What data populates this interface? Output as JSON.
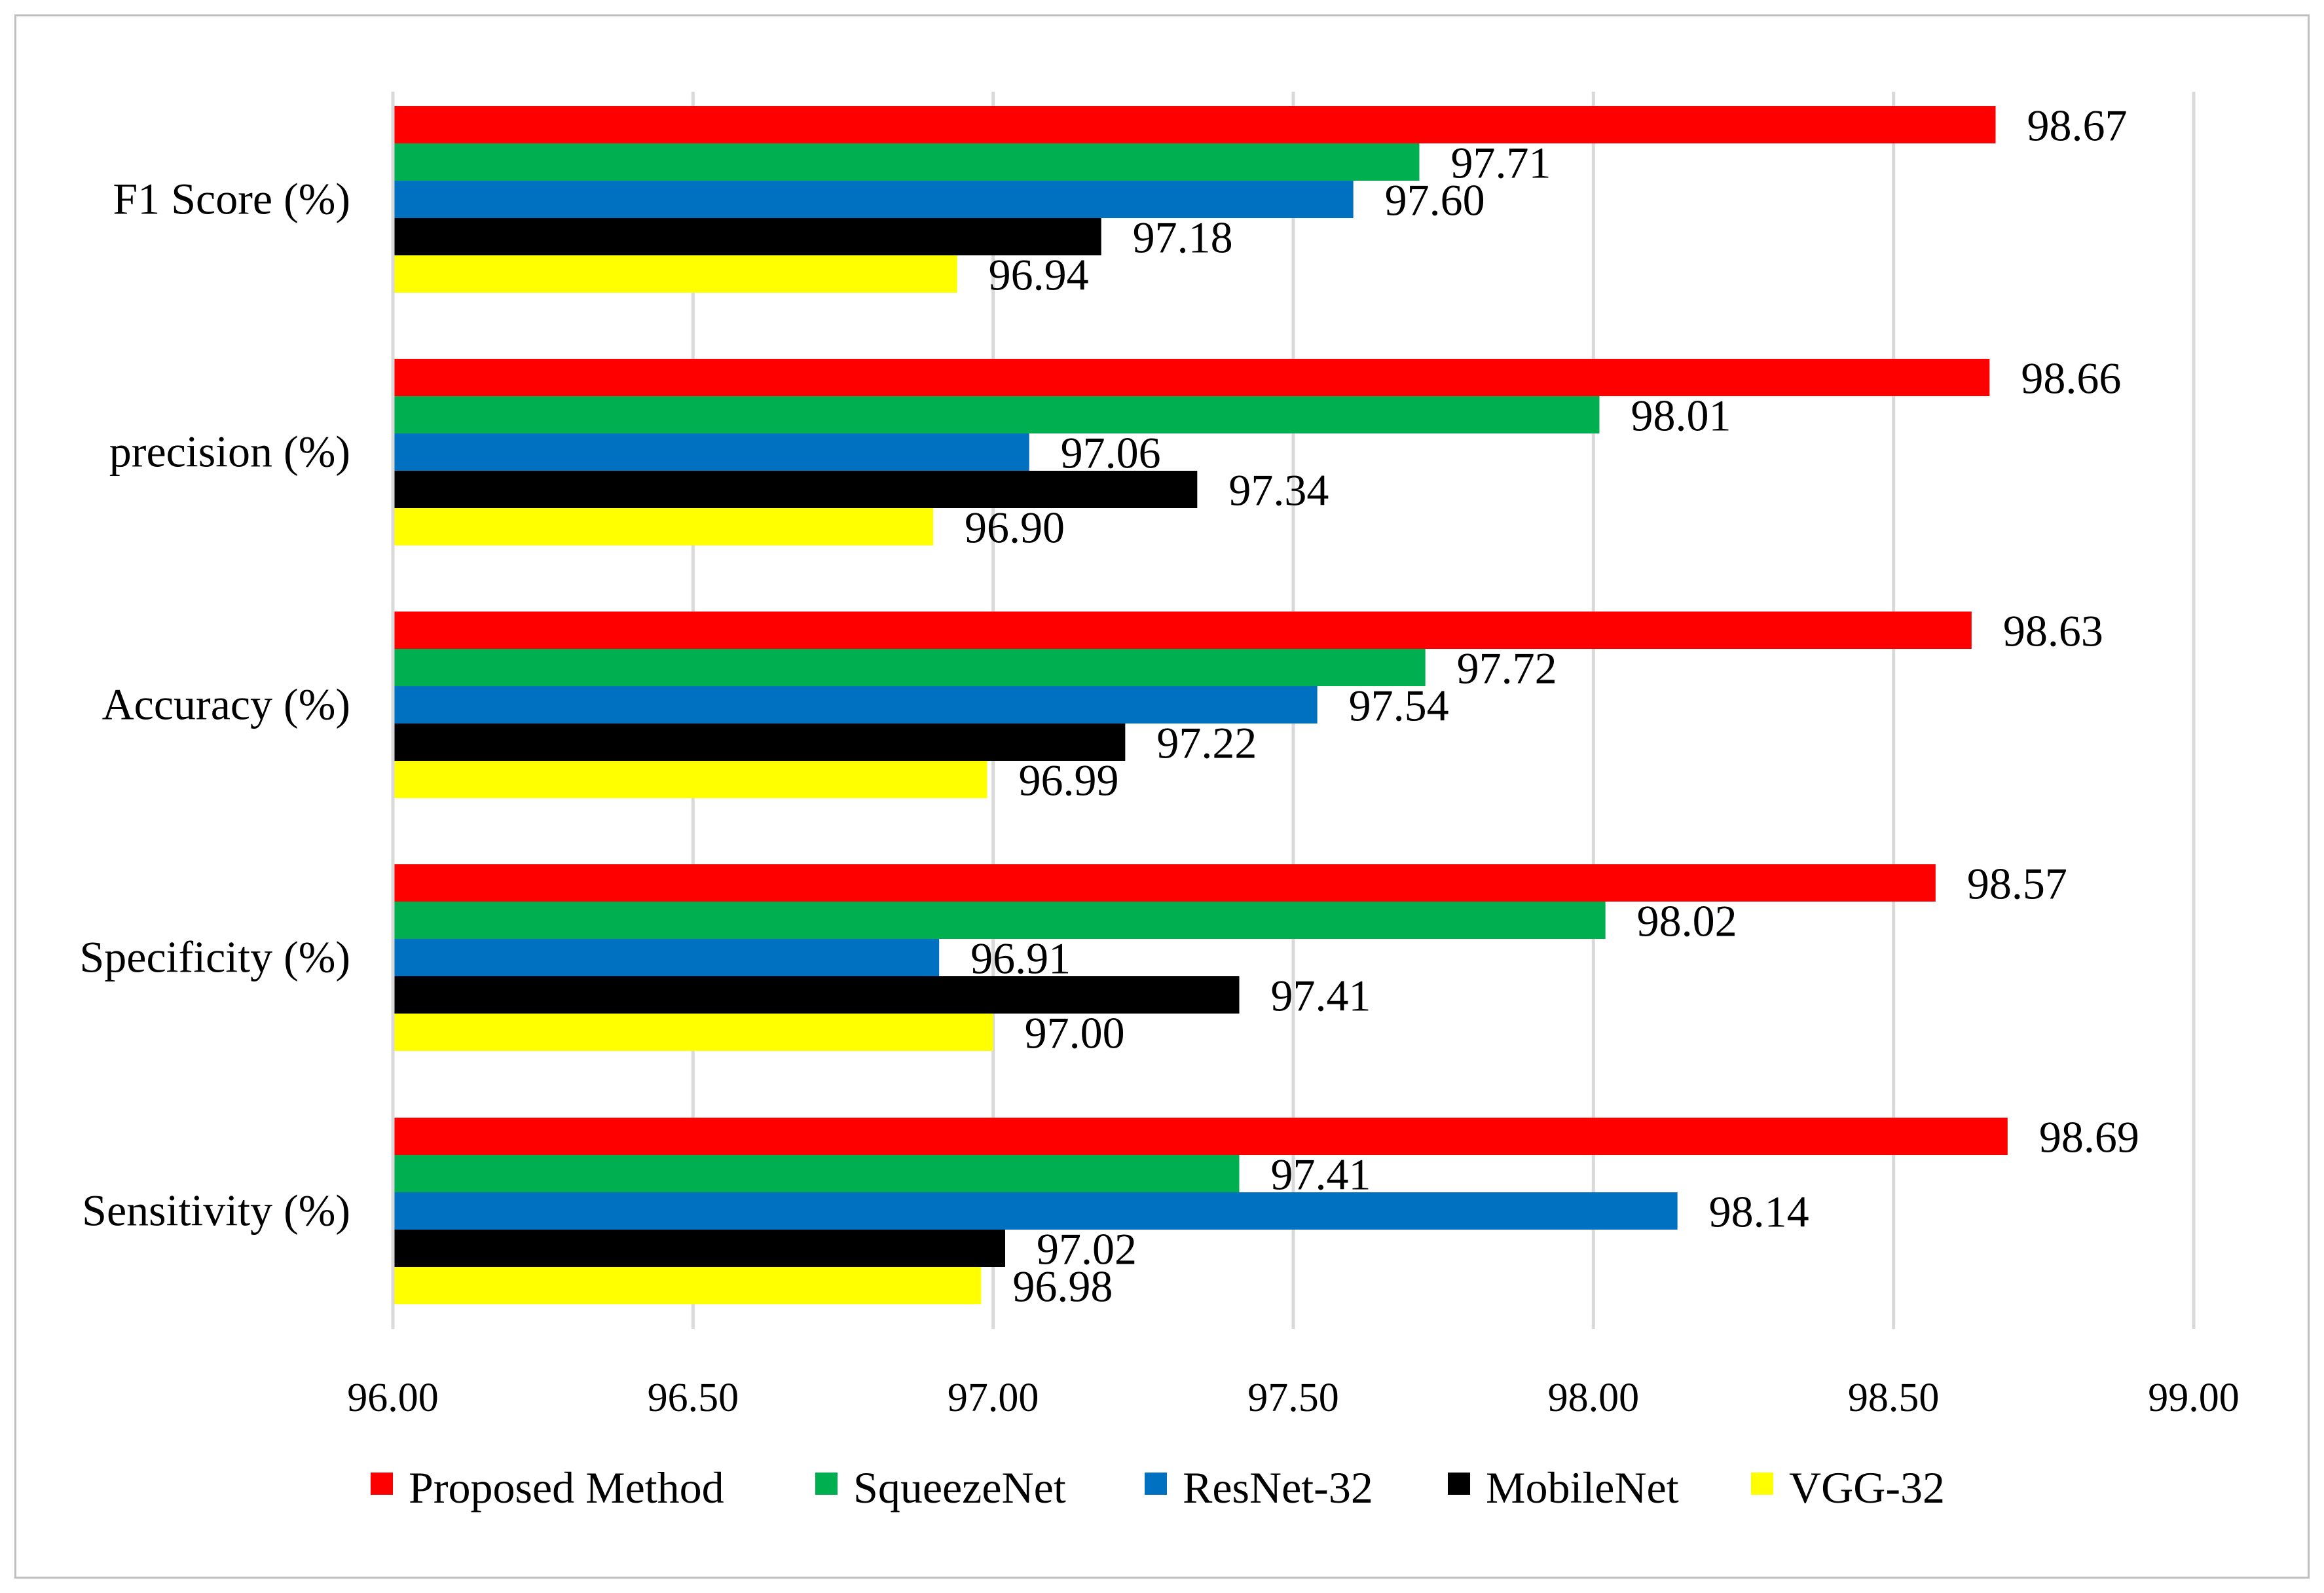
{
  "chart_data": {
    "type": "bar",
    "orientation": "horizontal",
    "title": "",
    "xlabel": "",
    "ylabel": "",
    "xlim": [
      96.0,
      99.0
    ],
    "x_ticks": [
      "96.00",
      "96.50",
      "97.00",
      "97.50",
      "98.00",
      "98.50",
      "99.00"
    ],
    "grid": true,
    "legend_position": "bottom",
    "categories": [
      "F1 Score (%)",
      "precision (%)",
      "Accuracy (%)",
      "Specificity (%)",
      "Sensitivity (%)"
    ],
    "series": [
      {
        "name": "Proposed Method",
        "color": "#ff0000",
        "values": [
          98.67,
          98.66,
          98.63,
          98.57,
          98.69
        ],
        "labels": [
          "98.67",
          "98.66",
          "98.63",
          "98.57",
          "98.69"
        ]
      },
      {
        "name": "SqueezeNet",
        "color": "#00b050",
        "values": [
          97.71,
          98.01,
          97.72,
          98.02,
          97.41
        ],
        "labels": [
          "97.71",
          "98.01",
          "97.72",
          "98.02",
          "97.41"
        ]
      },
      {
        "name": "ResNet-32",
        "color": "#0070c0",
        "values": [
          97.6,
          97.06,
          97.54,
          96.91,
          98.14
        ],
        "labels": [
          "97.60",
          "97.06",
          "97.54",
          "96.91",
          "98.14"
        ]
      },
      {
        "name": "MobileNet",
        "color": "#000000",
        "values": [
          97.18,
          97.34,
          97.22,
          97.41,
          97.02
        ],
        "labels": [
          "97.18",
          "97.34",
          "97.22",
          "97.41",
          "97.02"
        ]
      },
      {
        "name": "VGG-32",
        "color": "#ffff00",
        "values": [
          96.94,
          96.9,
          96.99,
          97.0,
          96.98
        ],
        "labels": [
          "96.94",
          "96.90",
          "96.99",
          "97.00",
          "96.98"
        ]
      }
    ]
  }
}
